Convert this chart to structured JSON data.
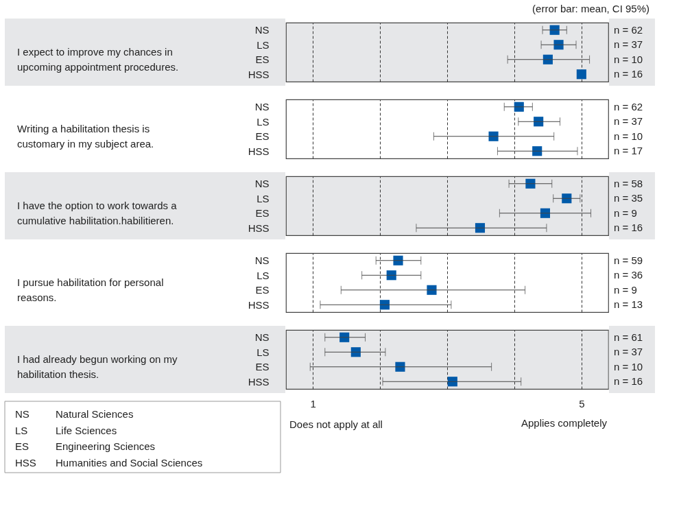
{
  "chart_data": [
    {
      "type": "scatter",
      "ylabel": "I expect to improve my chances in upcoming appointment procedures.",
      "categories": [
        "NS",
        "LS",
        "ES",
        "HSS"
      ],
      "y2_categories": [
        "n = 62",
        "n = 37",
        "n = 10",
        "n = 16"
      ],
      "values": [
        4.6,
        4.66,
        4.5,
        5.0
      ],
      "orientation": "horizontal",
      "errors": [
        [
          4.42,
          4.78
        ],
        [
          4.4,
          4.92
        ],
        [
          3.9,
          5.12
        ],
        null
      ],
      "color": "#005aa9",
      "marker": "square",
      "xlim": [
        0.6,
        5.4
      ],
      "xticks": [
        1,
        {
          "value": 2,
          "label": null
        },
        {
          "value": 3,
          "label": null
        },
        {
          "value": 4,
          "label": null
        },
        5
      ],
      "grid": "x",
      "tick_labels": "y",
      "annotations": [
        "(error bar: mean, CI 95%)"
      ]
    },
    {
      "type": "scatter",
      "ylabel": "Writing a habilitation thesis is customary in my subject area.",
      "categories": [
        "NS",
        "LS",
        "ES",
        "HSS"
      ],
      "y2_categories": [
        "n = 62",
        "n = 37",
        "n = 10",
        "n = 17"
      ],
      "values": [
        4.07,
        4.36,
        3.69,
        4.34
      ],
      "orientation": "horizontal",
      "errors": [
        [
          3.85,
          4.27
        ],
        [
          4.06,
          4.68
        ],
        [
          2.8,
          4.59
        ],
        [
          3.75,
          4.94
        ]
      ],
      "color": "#005aa9",
      "marker": "square",
      "xlim": [
        0.6,
        5.4
      ],
      "xticks": [
        1,
        {
          "value": 2,
          "label": null
        },
        {
          "value": 3,
          "label": null
        },
        {
          "value": 4,
          "label": null
        },
        5
      ],
      "grid": "x",
      "tick_labels": "y"
    },
    {
      "type": "scatter",
      "ylabel": "I have the option to work towards a cumulative habilitation.habilitieren.",
      "categories": [
        "NS",
        "LS",
        "ES",
        "HSS"
      ],
      "y2_categories": [
        "n = 58",
        "n = 35",
        "n =  9",
        "n = 16"
      ],
      "values": [
        4.24,
        4.78,
        4.46,
        3.49
      ],
      "orientation": "horizontal",
      "errors": [
        [
          3.92,
          4.56
        ],
        [
          4.58,
          4.98
        ],
        [
          3.78,
          5.14
        ],
        [
          2.54,
          4.48
        ]
      ],
      "color": "#005aa9",
      "marker": "square",
      "xlim": [
        0.6,
        5.4
      ],
      "xticks": [
        1,
        {
          "value": 2,
          "label": null
        },
        {
          "value": 3,
          "label": null
        },
        {
          "value": 4,
          "label": null
        },
        5
      ],
      "grid": "x",
      "tick_labels": "y"
    },
    {
      "type": "scatter",
      "ylabel": "I pursue habilitation for personal reasons.",
      "categories": [
        "NS",
        "LS",
        "ES",
        "HSS"
      ],
      "y2_categories": [
        "n = 59",
        "n = 36",
        "n =  9",
        "n = 13"
      ],
      "values": [
        2.27,
        2.17,
        2.77,
        2.07
      ],
      "orientation": "horizontal",
      "errors": [
        [
          1.94,
          2.61
        ],
        [
          1.73,
          2.61
        ],
        [
          1.42,
          4.16
        ],
        [
          1.11,
          3.06
        ]
      ],
      "color": "#005aa9",
      "marker": "square",
      "xlim": [
        0.6,
        5.4
      ],
      "xticks": [
        1,
        {
          "value": 2,
          "label": null
        },
        {
          "value": 3,
          "label": null
        },
        {
          "value": 4,
          "label": null
        },
        5
      ],
      "grid": "x",
      "tick_labels": "y"
    },
    {
      "type": "scatter",
      "ylabel": "I had already begun working on my habilitation thesis.",
      "categories": [
        "NS",
        "LS",
        "ES",
        "HSS"
      ],
      "y2_categories": [
        "n = 61",
        "n = 37",
        "n = 10",
        "n = 16"
      ],
      "values": [
        1.47,
        1.64,
        2.3,
        3.08
      ],
      "orientation": "horizontal",
      "errors": [
        [
          1.18,
          1.78
        ],
        [
          1.18,
          2.08
        ],
        [
          0.96,
          3.66
        ],
        [
          2.04,
          4.1
        ]
      ],
      "color": "#005aa9",
      "marker": "square",
      "xlim": [
        0.6,
        5.4
      ],
      "xticks": [
        1,
        {
          "value": 2,
          "label": null
        },
        {
          "value": 3,
          "label": null
        },
        {
          "value": 4,
          "label": null
        },
        5
      ],
      "grid": "x",
      "annotations": [
        "Does not apply at all",
        "Applies completely",
        "NS",
        "Natural Sciences",
        "LS",
        "Life Sciences",
        "ES",
        "Engineering Sciences",
        "HSS",
        "Humanities and Social Sciences"
      ]
    }
  ]
}
